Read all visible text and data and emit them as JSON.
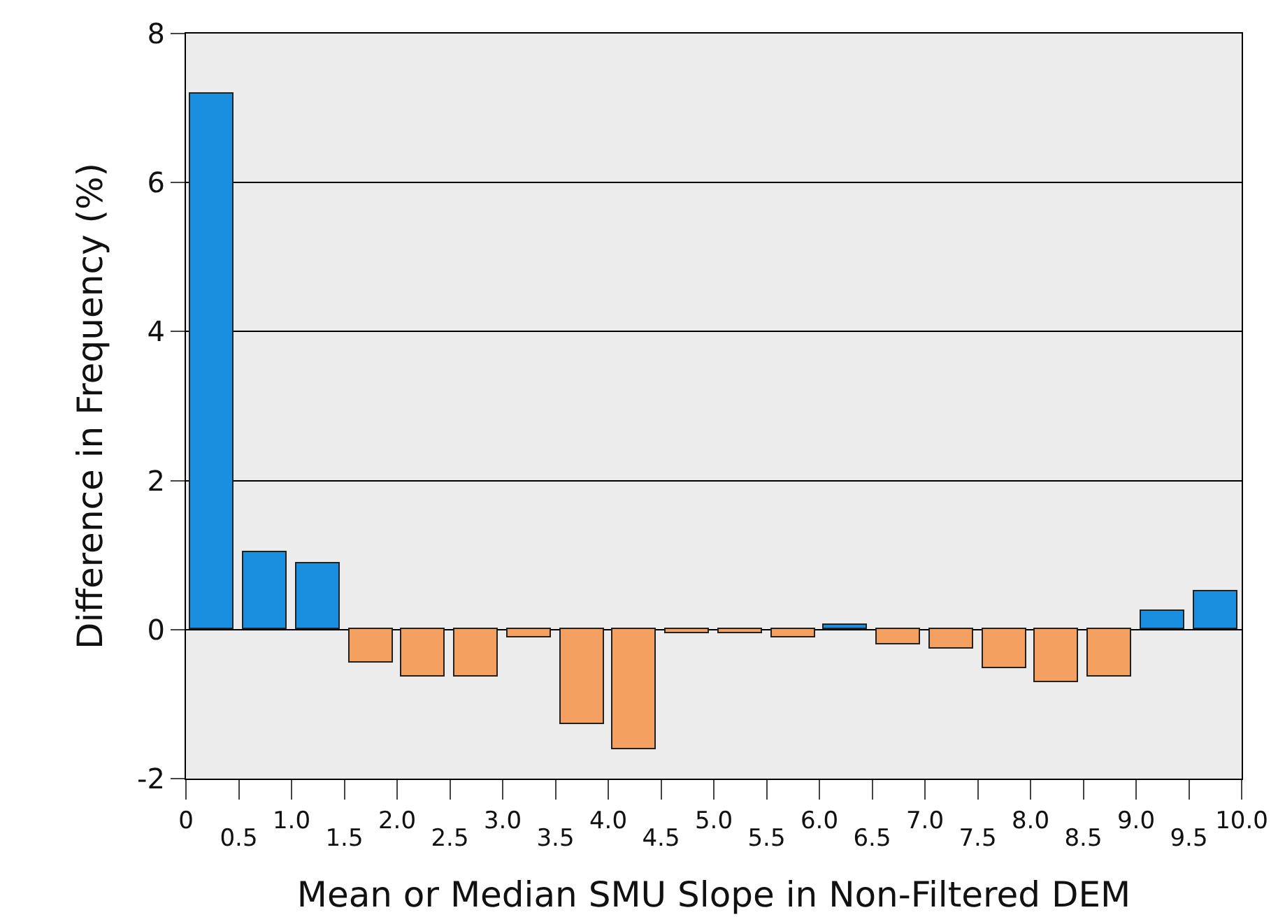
{
  "chart_data": {
    "type": "histogram",
    "xlabel": "Mean or Median SMU Slope in Non-Filtered DEM",
    "ylabel": "Difference in Frequency (%)",
    "bins": [
      0,
      0.5,
      1.0,
      1.5,
      2.0,
      2.5,
      3.0,
      3.5,
      4.0,
      4.5,
      5.0,
      5.5,
      6.0,
      6.5,
      7.0,
      7.5,
      8.0,
      8.5,
      9.0,
      9.5,
      10.0
    ],
    "values": [
      7.2,
      1.04,
      0.89,
      -0.45,
      -0.63,
      -0.63,
      -0.11,
      -1.27,
      -1.6,
      -0.04,
      -0.04,
      -0.11,
      0.07,
      -0.19,
      -0.26,
      -0.52,
      -0.71,
      -0.63,
      0.26,
      0.52
    ],
    "colors": [
      "#1a8fe0",
      "#1a8fe0",
      "#1a8fe0",
      "#f4a060",
      "#f4a060",
      "#f4a060",
      "#f4a060",
      "#f4a060",
      "#f4a060",
      "#f4a060",
      "#f4a060",
      "#f4a060",
      "#1a8fe0",
      "#f4a060",
      "#f4a060",
      "#f4a060",
      "#f4a060",
      "#f4a060",
      "#1a8fe0",
      "#1a8fe0"
    ],
    "xlim": [
      0,
      10
    ],
    "xticks": [
      0,
      {
        "value": 0.5,
        "label": null
      },
      {
        "value": 1,
        "label": "1.0"
      },
      {
        "value": 1.5,
        "label": null
      },
      {
        "value": 2,
        "label": "2.0"
      },
      {
        "value": 2.5,
        "label": null
      },
      {
        "value": 3,
        "label": "3.0"
      },
      {
        "value": 3.5,
        "label": null
      },
      {
        "value": 4,
        "label": "4.0"
      },
      {
        "value": 4.5,
        "label": null
      },
      {
        "value": 5,
        "label": "5.0"
      },
      {
        "value": 5.5,
        "label": null
      },
      {
        "value": 6,
        "label": "6.0"
      },
      {
        "value": 6.5,
        "label": null
      },
      {
        "value": 7,
        "label": "7.0"
      },
      {
        "value": 7.5,
        "label": null
      },
      {
        "value": 8,
        "label": "8.0"
      },
      {
        "value": 8.5,
        "label": null
      },
      {
        "value": 9,
        "label": "9.0"
      },
      {
        "value": 9.5,
        "label": null
      },
      {
        "value": 10,
        "label": "10.0"
      }
    ],
    "x2lim": [
      0,
      10
    ],
    "x2ticks": [
      0.5,
      1.5,
      2.5,
      3.5,
      4.5,
      5.5,
      6.5,
      7.5,
      8.5,
      9.5
    ],
    "ylim": [
      -2,
      8
    ],
    "yticks": [
      -2,
      0,
      2,
      4,
      6,
      8
    ],
    "grid": "y"
  }
}
